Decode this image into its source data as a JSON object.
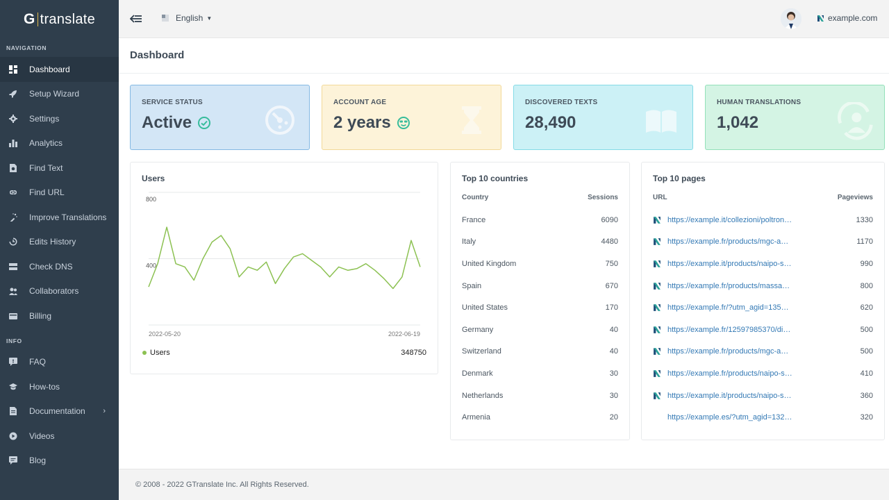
{
  "brand": {
    "logo_g": "G",
    "logo_text": "translate",
    "accent": "#e0b94a"
  },
  "sidebar": {
    "navigation_heading": "NAVIGATION",
    "info_heading": "INFO",
    "nav_items": [
      {
        "label": "Dashboard",
        "icon": "dashboard-icon",
        "active": true
      },
      {
        "label": "Setup Wizard",
        "icon": "rocket-icon"
      },
      {
        "label": "Settings",
        "icon": "gear-icon"
      },
      {
        "label": "Analytics",
        "icon": "bar-chart-icon"
      },
      {
        "label": "Find Text",
        "icon": "find-text-icon"
      },
      {
        "label": "Find URL",
        "icon": "link-icon"
      },
      {
        "label": "Improve Translations",
        "icon": "magic-wand-icon"
      },
      {
        "label": "Edits History",
        "icon": "history-icon"
      },
      {
        "label": "Check DNS",
        "icon": "server-icon"
      },
      {
        "label": "Collaborators",
        "icon": "users-icon"
      },
      {
        "label": "Billing",
        "icon": "credit-card-icon"
      }
    ],
    "info_items": [
      {
        "label": "FAQ",
        "icon": "question-icon"
      },
      {
        "label": "How-tos",
        "icon": "graduation-cap-icon"
      },
      {
        "label": "Documentation",
        "icon": "document-icon"
      },
      {
        "label": "Videos",
        "icon": "video-icon"
      },
      {
        "label": "Blog",
        "icon": "comment-icon"
      }
    ]
  },
  "topbar": {
    "language": "English",
    "site": "example.com"
  },
  "page": {
    "title": "Dashboard"
  },
  "stats": [
    {
      "label": "SERVICE STATUS",
      "value": "Active",
      "icon": "speedometer-icon"
    },
    {
      "label": "ACCOUNT AGE",
      "value": "2 years",
      "icon": "hourglass-icon"
    },
    {
      "label": "DISCOVERED TEXTS",
      "value": "28,490",
      "icon": "book-icon"
    },
    {
      "label": "HUMAN TRANSLATIONS",
      "value": "1,042",
      "icon": "support-agent-icon"
    }
  ],
  "users": {
    "title": "Users",
    "legend": "Users",
    "total": "348750",
    "line_color": "#8cc152",
    "chart_data": {
      "type": "line",
      "x_labels": [
        "2022-05-20",
        "2022-06-19"
      ],
      "y_ticks": [
        400,
        800
      ],
      "ylim": [
        0,
        800
      ],
      "grid": true,
      "series": [
        {
          "name": "Users",
          "values": [
            230,
            370,
            590,
            370,
            350,
            270,
            400,
            500,
            540,
            460,
            290,
            350,
            330,
            380,
            250,
            340,
            410,
            430,
            390,
            350,
            290,
            350,
            330,
            340,
            370,
            330,
            280,
            220,
            290,
            510,
            350
          ]
        }
      ]
    }
  },
  "countries": {
    "title": "Top 10 countries",
    "col_country": "Country",
    "col_sessions": "Sessions",
    "rows": [
      {
        "country": "France",
        "sessions": "6090"
      },
      {
        "country": "Italy",
        "sessions": "4480"
      },
      {
        "country": "United Kingdom",
        "sessions": "750"
      },
      {
        "country": "Spain",
        "sessions": "670"
      },
      {
        "country": "United States",
        "sessions": "170"
      },
      {
        "country": "Germany",
        "sessions": "40"
      },
      {
        "country": "Switzerland",
        "sessions": "40"
      },
      {
        "country": "Denmark",
        "sessions": "30"
      },
      {
        "country": "Netherlands",
        "sessions": "30"
      },
      {
        "country": "Armenia",
        "sessions": "20"
      }
    ]
  },
  "pages": {
    "title": "Top 10 pages",
    "col_url": "URL",
    "col_pageviews": "Pageviews",
    "rows": [
      {
        "url": "https://example.it/collezioni/poltron…",
        "pageviews": "1330",
        "icon": true
      },
      {
        "url": "https://example.fr/products/mgc-a…",
        "pageviews": "1170",
        "icon": true
      },
      {
        "url": "https://example.it/products/naipo-s…",
        "pageviews": "990",
        "icon": true
      },
      {
        "url": "https://example.fr/products/massa…",
        "pageviews": "800",
        "icon": true
      },
      {
        "url": "https://example.fr/?utm_agid=135…",
        "pageviews": "620",
        "icon": true
      },
      {
        "url": "https://example.fr/12597985370/di…",
        "pageviews": "500",
        "icon": true
      },
      {
        "url": "https://example.fr/products/mgc-a…",
        "pageviews": "500",
        "icon": true
      },
      {
        "url": "https://example.fr/products/naipo-s…",
        "pageviews": "410",
        "icon": true
      },
      {
        "url": "https://example.it/products/naipo-s…",
        "pageviews": "360",
        "icon": true
      },
      {
        "url": "https://example.es/?utm_agid=132…",
        "pageviews": "320",
        "icon": false
      }
    ]
  },
  "footer": {
    "text": "© 2008 - 2022 GTranslate Inc. All Rights Reserved."
  }
}
